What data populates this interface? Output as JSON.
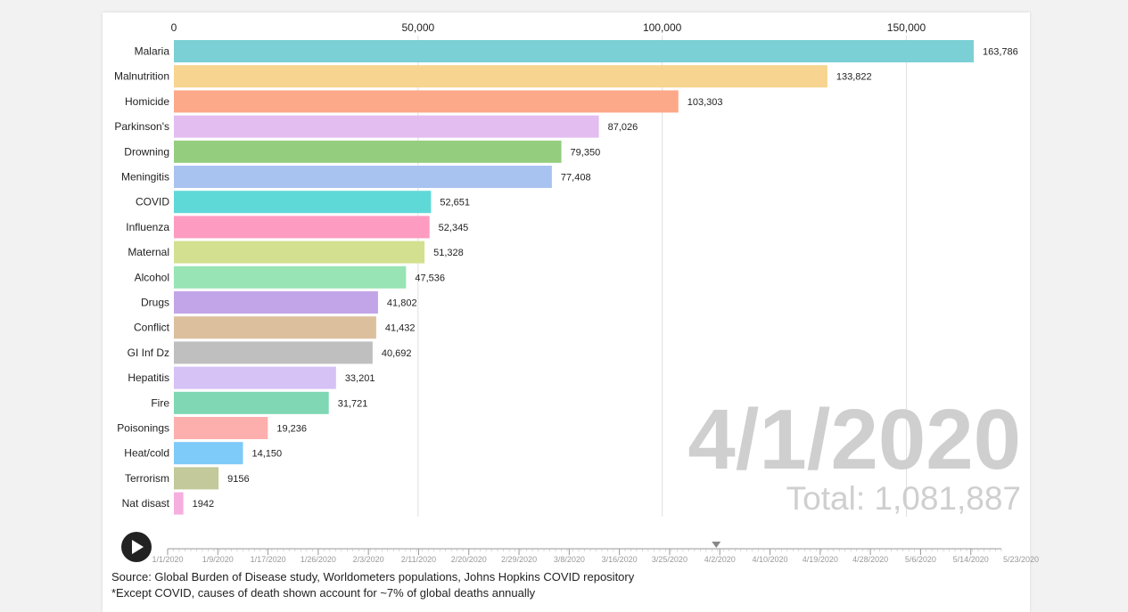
{
  "chart_data": {
    "type": "bar",
    "orientation": "horizontal",
    "categories": [
      "Malaria",
      "Malnutrition",
      "Homicide",
      "Parkinson's",
      "Drowning",
      "Meningitis",
      "COVID",
      "Influenza",
      "Maternal",
      "Alcohol",
      "Drugs",
      "Conflict",
      "GI Inf Dz",
      "Hepatitis",
      "Fire",
      "Poisonings",
      "Heat/cold",
      "Terrorism",
      "Nat disast"
    ],
    "values": [
      163786,
      133822,
      103303,
      87026,
      79350,
      77408,
      52651,
      52345,
      51328,
      47536,
      41802,
      41432,
      40692,
      33201,
      31721,
      19236,
      14150,
      9156,
      1942
    ],
    "value_labels": [
      "163,786",
      "133,822",
      "103,303",
      "87,026",
      "79,350",
      "77,408",
      "52,651",
      "52,345",
      "51,328",
      "47,536",
      "41,802",
      "41,432",
      "40,692",
      "33,201",
      "31,721",
      "19,236",
      "14,150",
      "9156",
      "1942"
    ],
    "colors": [
      "#7ad0d4",
      "#f7d48f",
      "#fca98a",
      "#e3bdf0",
      "#95cd7f",
      "#a9c3f0",
      "#5fd8d8",
      "#fd9bc0",
      "#d3e08f",
      "#98e4b4",
      "#c2a5e8",
      "#dcc09e",
      "#bfbfbf",
      "#d6c2f5",
      "#7fd7b4",
      "#fdafad",
      "#7ecaf9",
      "#c3c99a",
      "#f6aee0"
    ],
    "xlim": [
      0,
      170000
    ],
    "xticks": [
      0,
      50000,
      100000,
      150000
    ],
    "xtick_labels": [
      "0",
      "50,000",
      "100,000",
      "150,000"
    ],
    "date": "4/1/2020",
    "total_label": "Total: 1,081,887",
    "xlabel": "",
    "ylabel": ""
  },
  "timeline": {
    "labels": [
      "1/1/2020",
      "1/9/2020",
      "1/17/2020",
      "1/26/2020",
      "2/3/2020",
      "2/11/2020",
      "2/20/2020",
      "2/29/2020",
      "3/8/2020",
      "3/16/2020",
      "3/25/2020",
      "4/2/2020",
      "4/10/2020",
      "4/19/2020",
      "4/28/2020",
      "5/6/2020",
      "5/14/2020",
      "5/23/2020"
    ],
    "current_index": 11
  },
  "footer": {
    "source": "Source: Global Burden of Disease study, Worldometers populations, Johns Hopkins COVID repository",
    "note": "*Except COVID, causes of death shown account for ~7% of global deaths annually"
  }
}
